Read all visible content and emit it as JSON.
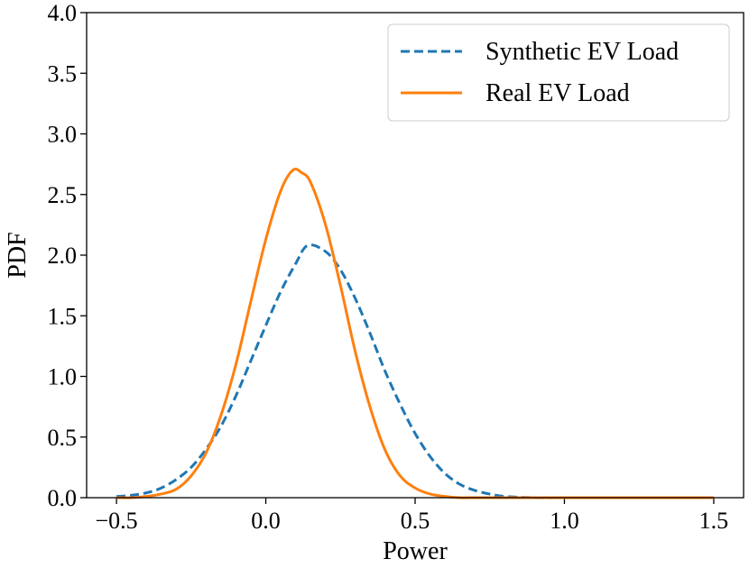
{
  "chart_data": {
    "type": "line",
    "title": "",
    "xlabel": "Power",
    "ylabel": "PDF",
    "xlim": [
      -0.6,
      1.6
    ],
    "ylim": [
      0.0,
      4.0
    ],
    "x_ticks": [
      -0.5,
      0.0,
      0.5,
      1.0,
      1.5
    ],
    "x_tick_labels": [
      "−0.5",
      "0.0",
      "0.5",
      "1.0",
      "1.5"
    ],
    "y_ticks": [
      0.0,
      0.5,
      1.0,
      1.5,
      2.0,
      2.5,
      3.0,
      3.5,
      4.0
    ],
    "y_tick_labels": [
      "0.0",
      "0.5",
      "1.0",
      "1.5",
      "2.0",
      "2.5",
      "3.0",
      "3.5",
      "4.0"
    ],
    "grid": false,
    "legend_position": "top-right",
    "series": [
      {
        "name": "Synthetic EV Load",
        "style": "dashed",
        "color": "#1f77b4",
        "x": [
          -0.5,
          -0.45,
          -0.4,
          -0.35,
          -0.3,
          -0.25,
          -0.2,
          -0.15,
          -0.1,
          -0.05,
          0.0,
          0.05,
          0.1,
          0.14,
          0.2,
          0.25,
          0.3,
          0.35,
          0.4,
          0.45,
          0.5,
          0.55,
          0.6,
          0.65,
          0.7,
          0.75,
          0.8,
          0.9,
          1.0,
          1.1,
          1.2,
          1.3,
          1.4,
          1.5
        ],
        "y": [
          0.01,
          0.02,
          0.04,
          0.08,
          0.15,
          0.25,
          0.4,
          0.59,
          0.84,
          1.13,
          1.42,
          1.7,
          1.93,
          2.08,
          2.03,
          1.88,
          1.64,
          1.35,
          1.04,
          0.77,
          0.53,
          0.34,
          0.2,
          0.11,
          0.06,
          0.03,
          0.01,
          0.0,
          0.0,
          0.0,
          0.0,
          0.0,
          0.0,
          0.0
        ]
      },
      {
        "name": "Real EV Load",
        "style": "solid",
        "color": "#ff7f0e",
        "x": [
          -0.5,
          -0.45,
          -0.4,
          -0.35,
          -0.3,
          -0.25,
          -0.2,
          -0.15,
          -0.1,
          -0.05,
          0.0,
          0.05,
          0.09,
          0.12,
          0.15,
          0.2,
          0.25,
          0.3,
          0.35,
          0.4,
          0.45,
          0.5,
          0.55,
          0.6,
          0.65,
          0.7,
          0.8,
          0.9,
          1.0,
          1.2,
          1.5
        ],
        "y": [
          0.0,
          0.0,
          0.01,
          0.03,
          0.07,
          0.18,
          0.37,
          0.68,
          1.1,
          1.62,
          2.13,
          2.53,
          2.7,
          2.68,
          2.6,
          2.25,
          1.75,
          1.2,
          0.74,
          0.39,
          0.18,
          0.08,
          0.03,
          0.01,
          0.0,
          0.0,
          0.0,
          0.0,
          0.0,
          0.0,
          0.0
        ]
      }
    ]
  }
}
